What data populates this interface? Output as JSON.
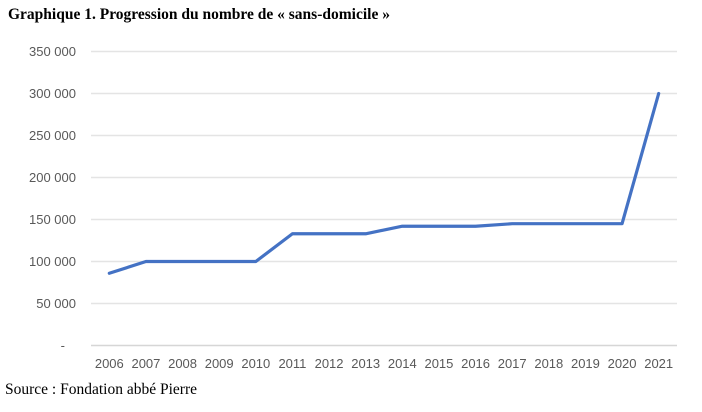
{
  "page": {
    "title": "Graphique 1. Progression du nombre de « sans-domicile »",
    "source": "Source : Fondation abbé Pierre"
  },
  "chart_data": {
    "type": "line",
    "title": "Graphique 1. Progression du nombre de « sans-domicile »",
    "categories": [
      "2006",
      "2007",
      "2008",
      "2009",
      "2010",
      "2011",
      "2012",
      "2013",
      "2014",
      "2015",
      "2016",
      "2017",
      "2018",
      "2019",
      "2020",
      "2021"
    ],
    "values": [
      86000,
      100000,
      100000,
      100000,
      100000,
      133000,
      133000,
      133000,
      142000,
      142000,
      142000,
      145000,
      145000,
      145000,
      145000,
      300000
    ],
    "xlabel": "",
    "ylabel": "",
    "ylim": [
      0,
      350000
    ],
    "y_ticks": [
      {
        "value": 0,
        "label": "-"
      },
      {
        "value": 50000,
        "label": "50 000"
      },
      {
        "value": 100000,
        "label": "100 000"
      },
      {
        "value": 150000,
        "label": "150 000"
      },
      {
        "value": 200000,
        "label": "200 000"
      },
      {
        "value": 250000,
        "label": "250 000"
      },
      {
        "value": 300000,
        "label": "300 000"
      },
      {
        "value": 350000,
        "label": "350 000"
      }
    ],
    "grid": "horizontal",
    "legend": "none",
    "line_color": "#4472C4",
    "gridline_color": "#E4E4E4",
    "axis_line_color": "#D6D6D6",
    "tick_label_color": "#595959",
    "source_note": "Source : Fondation abbé Pierre"
  }
}
